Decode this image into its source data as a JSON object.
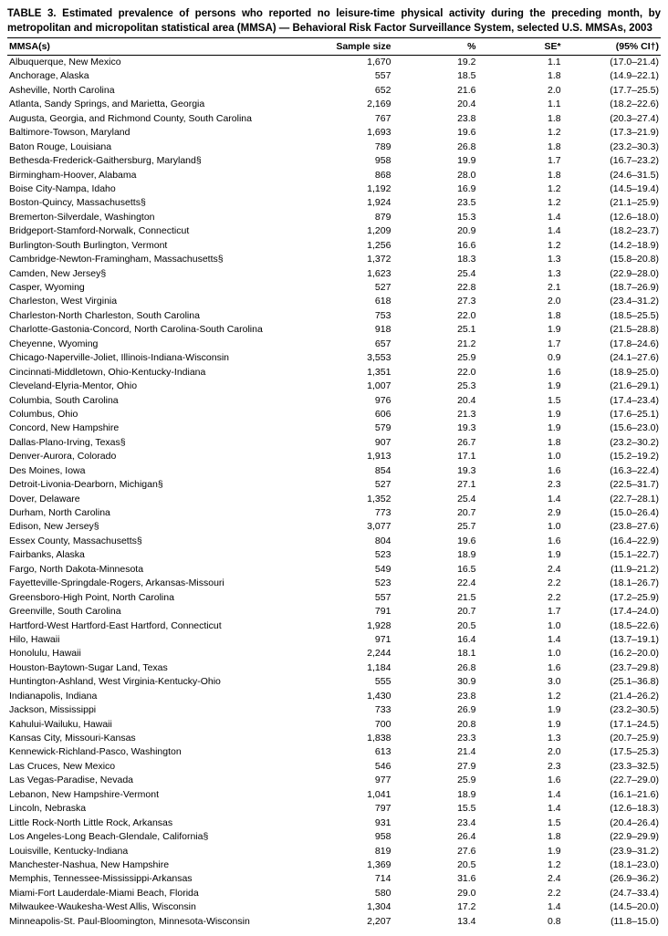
{
  "title": "TABLE 3. Estimated prevalence of persons who reported no leisure-time physical activity during the preceding month, by metropolitan and micropolitan statistical area (MMSA) — Behavioral Risk Factor Surveillance System, selected U.S. MMSAs, 2003",
  "columns": [
    "MMSA(s)",
    "Sample size",
    "%",
    "SE*",
    "(95% CI†)"
  ],
  "rows": [
    {
      "mmsa": "Albuquerque, New Mexico",
      "size": "1,670",
      "pct": "19.2",
      "se": "1.1",
      "ci": "(17.0–21.4)"
    },
    {
      "mmsa": "Anchorage, Alaska",
      "size": "557",
      "pct": "18.5",
      "se": "1.8",
      "ci": "(14.9–22.1)"
    },
    {
      "mmsa": "Asheville, North Carolina",
      "size": "652",
      "pct": "21.6",
      "se": "2.0",
      "ci": "(17.7–25.5)"
    },
    {
      "mmsa": "Atlanta, Sandy Springs, and Marietta, Georgia",
      "size": "2,169",
      "pct": "20.4",
      "se": "1.1",
      "ci": "(18.2–22.6)"
    },
    {
      "mmsa": "Augusta, Georgia, and Richmond County, South Carolina",
      "size": "767",
      "pct": "23.8",
      "se": "1.8",
      "ci": "(20.3–27.4)"
    },
    {
      "mmsa": "Baltimore-Towson, Maryland",
      "size": "1,693",
      "pct": "19.6",
      "se": "1.2",
      "ci": "(17.3–21.9)"
    },
    {
      "mmsa": "Baton Rouge, Louisiana",
      "size": "789",
      "pct": "26.8",
      "se": "1.8",
      "ci": "(23.2–30.3)"
    },
    {
      "mmsa": "Bethesda-Frederick-Gaithersburg, Maryland§",
      "size": "958",
      "pct": "19.9",
      "se": "1.7",
      "ci": "(16.7–23.2)"
    },
    {
      "mmsa": "Birmingham-Hoover, Alabama",
      "size": "868",
      "pct": "28.0",
      "se": "1.8",
      "ci": "(24.6–31.5)"
    },
    {
      "mmsa": "Boise City-Nampa, Idaho",
      "size": "1,192",
      "pct": "16.9",
      "se": "1.2",
      "ci": "(14.5–19.4)"
    },
    {
      "mmsa": "Boston-Quincy, Massachusetts§",
      "size": "1,924",
      "pct": "23.5",
      "se": "1.2",
      "ci": "(21.1–25.9)"
    },
    {
      "mmsa": "Bremerton-Silverdale, Washington",
      "size": "879",
      "pct": "15.3",
      "se": "1.4",
      "ci": "(12.6–18.0)"
    },
    {
      "mmsa": "Bridgeport-Stamford-Norwalk, Connecticut",
      "size": "1,209",
      "pct": "20.9",
      "se": "1.4",
      "ci": "(18.2–23.7)"
    },
    {
      "mmsa": "Burlington-South Burlington, Vermont",
      "size": "1,256",
      "pct": "16.6",
      "se": "1.2",
      "ci": "(14.2–18.9)"
    },
    {
      "mmsa": "Cambridge-Newton-Framingham, Massachusetts§",
      "size": "1,372",
      "pct": "18.3",
      "se": "1.3",
      "ci": "(15.8–20.8)"
    },
    {
      "mmsa": "Camden, New Jersey§",
      "size": "1,623",
      "pct": "25.4",
      "se": "1.3",
      "ci": "(22.9–28.0)"
    },
    {
      "mmsa": "Casper, Wyoming",
      "size": "527",
      "pct": "22.8",
      "se": "2.1",
      "ci": "(18.7–26.9)"
    },
    {
      "mmsa": "Charleston, West Virginia",
      "size": "618",
      "pct": "27.3",
      "se": "2.0",
      "ci": "(23.4–31.2)"
    },
    {
      "mmsa": "Charleston-North Charleston, South Carolina",
      "size": "753",
      "pct": "22.0",
      "se": "1.8",
      "ci": "(18.5–25.5)"
    },
    {
      "mmsa": "Charlotte-Gastonia-Concord, North Carolina-South Carolina",
      "size": "918",
      "pct": "25.1",
      "se": "1.9",
      "ci": "(21.5–28.8)"
    },
    {
      "mmsa": "Cheyenne, Wyoming",
      "size": "657",
      "pct": "21.2",
      "se": "1.7",
      "ci": "(17.8–24.6)"
    },
    {
      "mmsa": "Chicago-Naperville-Joliet, Illinois-Indiana-Wisconsin",
      "size": "3,553",
      "pct": "25.9",
      "se": "0.9",
      "ci": "(24.1–27.6)"
    },
    {
      "mmsa": "Cincinnati-Middletown, Ohio-Kentucky-Indiana",
      "size": "1,351",
      "pct": "22.0",
      "se": "1.6",
      "ci": "(18.9–25.0)"
    },
    {
      "mmsa": "Cleveland-Elyria-Mentor, Ohio",
      "size": "1,007",
      "pct": "25.3",
      "se": "1.9",
      "ci": "(21.6–29.1)"
    },
    {
      "mmsa": "Columbia, South Carolina",
      "size": "976",
      "pct": "20.4",
      "se": "1.5",
      "ci": "(17.4–23.4)"
    },
    {
      "mmsa": "Columbus, Ohio",
      "size": "606",
      "pct": "21.3",
      "se": "1.9",
      "ci": "(17.6–25.1)"
    },
    {
      "mmsa": "Concord, New Hampshire",
      "size": "579",
      "pct": "19.3",
      "se": "1.9",
      "ci": "(15.6–23.0)"
    },
    {
      "mmsa": "Dallas-Plano-Irving, Texas§",
      "size": "907",
      "pct": "26.7",
      "se": "1.8",
      "ci": "(23.2–30.2)"
    },
    {
      "mmsa": "Denver-Aurora, Colorado",
      "size": "1,913",
      "pct": "17.1",
      "se": "1.0",
      "ci": "(15.2–19.2)"
    },
    {
      "mmsa": "Des Moines, Iowa",
      "size": "854",
      "pct": "19.3",
      "se": "1.6",
      "ci": "(16.3–22.4)"
    },
    {
      "mmsa": "Detroit-Livonia-Dearborn, Michigan§",
      "size": "527",
      "pct": "27.1",
      "se": "2.3",
      "ci": "(22.5–31.7)"
    },
    {
      "mmsa": "Dover, Delaware",
      "size": "1,352",
      "pct": "25.4",
      "se": "1.4",
      "ci": "(22.7–28.1)"
    },
    {
      "mmsa": "Durham, North Carolina",
      "size": "773",
      "pct": "20.7",
      "se": "2.9",
      "ci": "(15.0–26.4)"
    },
    {
      "mmsa": "Edison, New Jersey§",
      "size": "3,077",
      "pct": "25.7",
      "se": "1.0",
      "ci": "(23.8–27.6)"
    },
    {
      "mmsa": "Essex County, Massachusetts§",
      "size": "804",
      "pct": "19.6",
      "se": "1.6",
      "ci": "(16.4–22.9)"
    },
    {
      "mmsa": "Fairbanks, Alaska",
      "size": "523",
      "pct": "18.9",
      "se": "1.9",
      "ci": "(15.1–22.7)"
    },
    {
      "mmsa": "Fargo, North Dakota-Minnesota",
      "size": "549",
      "pct": "16.5",
      "se": "2.4",
      "ci": "(11.9–21.2)"
    },
    {
      "mmsa": "Fayetteville-Springdale-Rogers, Arkansas-Missouri",
      "size": "523",
      "pct": "22.4",
      "se": "2.2",
      "ci": "(18.1–26.7)"
    },
    {
      "mmsa": "Greensboro-High Point, North Carolina",
      "size": "557",
      "pct": "21.5",
      "se": "2.2",
      "ci": "(17.2–25.9)"
    },
    {
      "mmsa": "Greenville, South Carolina",
      "size": "791",
      "pct": "20.7",
      "se": "1.7",
      "ci": "(17.4–24.0)"
    },
    {
      "mmsa": "Hartford-West Hartford-East Hartford, Connecticut",
      "size": "1,928",
      "pct": "20.5",
      "se": "1.0",
      "ci": "(18.5–22.6)"
    },
    {
      "mmsa": "Hilo, Hawaii",
      "size": "971",
      "pct": "16.4",
      "se": "1.4",
      "ci": "(13.7–19.1)"
    },
    {
      "mmsa": "Honolulu, Hawaii",
      "size": "2,244",
      "pct": "18.1",
      "se": "1.0",
      "ci": "(16.2–20.0)"
    },
    {
      "mmsa": "Houston-Baytown-Sugar Land, Texas",
      "size": "1,184",
      "pct": "26.8",
      "se": "1.6",
      "ci": "(23.7–29.8)"
    },
    {
      "mmsa": "Huntington-Ashland, West Virginia-Kentucky-Ohio",
      "size": "555",
      "pct": "30.9",
      "se": "3.0",
      "ci": "(25.1–36.8)"
    },
    {
      "mmsa": "Indianapolis, Indiana",
      "size": "1,430",
      "pct": "23.8",
      "se": "1.2",
      "ci": "(21.4–26.2)"
    },
    {
      "mmsa": "Jackson, Mississippi",
      "size": "733",
      "pct": "26.9",
      "se": "1.9",
      "ci": "(23.2–30.5)"
    },
    {
      "mmsa": "Kahului-Wailuku, Hawaii",
      "size": "700",
      "pct": "20.8",
      "se": "1.9",
      "ci": "(17.1–24.5)"
    },
    {
      "mmsa": "Kansas City, Missouri-Kansas",
      "size": "1,838",
      "pct": "23.3",
      "se": "1.3",
      "ci": "(20.7–25.9)"
    },
    {
      "mmsa": "Kennewick-Richland-Pasco, Washington",
      "size": "613",
      "pct": "21.4",
      "se": "2.0",
      "ci": "(17.5–25.3)"
    },
    {
      "mmsa": "Las Cruces, New Mexico",
      "size": "546",
      "pct": "27.9",
      "se": "2.3",
      "ci": "(23.3–32.5)"
    },
    {
      "mmsa": "Las Vegas-Paradise, Nevada",
      "size": "977",
      "pct": "25.9",
      "se": "1.6",
      "ci": "(22.7–29.0)"
    },
    {
      "mmsa": "Lebanon, New Hampshire-Vermont",
      "size": "1,041",
      "pct": "18.9",
      "se": "1.4",
      "ci": "(16.1–21.6)"
    },
    {
      "mmsa": "Lincoln, Nebraska",
      "size": "797",
      "pct": "15.5",
      "se": "1.4",
      "ci": "(12.6–18.3)"
    },
    {
      "mmsa": "Little Rock-North Little Rock, Arkansas",
      "size": "931",
      "pct": "23.4",
      "se": "1.5",
      "ci": "(20.4–26.4)"
    },
    {
      "mmsa": "Los Angeles-Long Beach-Glendale, California§",
      "size": "958",
      "pct": "26.4",
      "se": "1.8",
      "ci": "(22.9–29.9)"
    },
    {
      "mmsa": "Louisville, Kentucky-Indiana",
      "size": "819",
      "pct": "27.6",
      "se": "1.9",
      "ci": "(23.9–31.2)"
    },
    {
      "mmsa": "Manchester-Nashua, New Hampshire",
      "size": "1,369",
      "pct": "20.5",
      "se": "1.2",
      "ci": "(18.1–23.0)"
    },
    {
      "mmsa": "Memphis, Tennessee-Mississippi-Arkansas",
      "size": "714",
      "pct": "31.6",
      "se": "2.4",
      "ci": "(26.9–36.2)"
    },
    {
      "mmsa": "Miami-Fort Lauderdale-Miami Beach, Florida",
      "size": "580",
      "pct": "29.0",
      "se": "2.2",
      "ci": "(24.7–33.4)"
    },
    {
      "mmsa": "Milwaukee-Waukesha-West Allis, Wisconsin",
      "size": "1,304",
      "pct": "17.2",
      "se": "1.4",
      "ci": "(14.5–20.0)"
    },
    {
      "mmsa": "Minneapolis-St. Paul-Bloomington, Minnesota-Wisconsin",
      "size": "2,207",
      "pct": "13.4",
      "se": "0.8",
      "ci": "(11.8–15.0)"
    }
  ]
}
